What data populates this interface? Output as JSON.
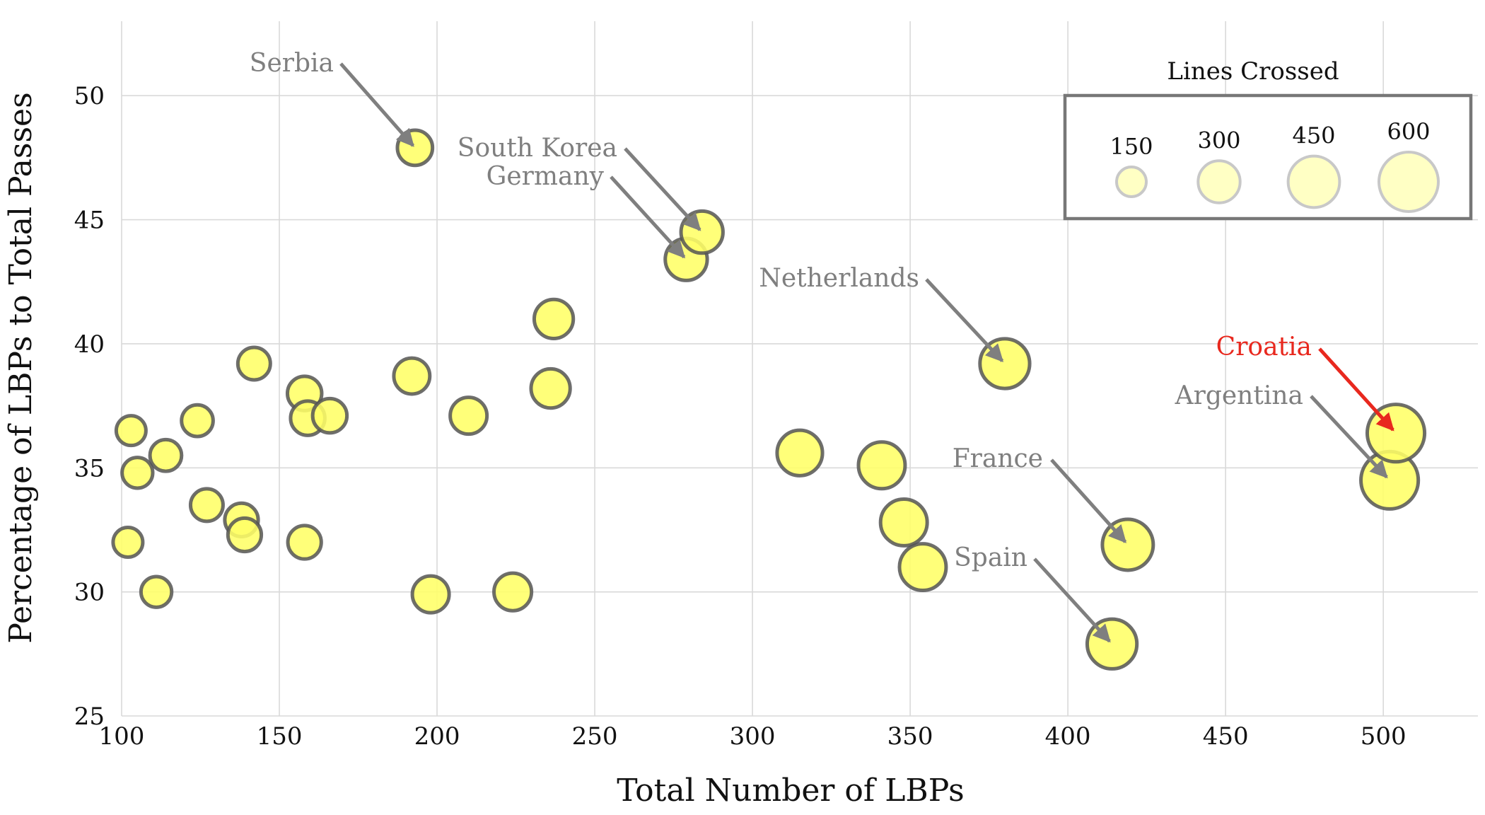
{
  "chart_data": {
    "type": "scatter",
    "xlabel": "Total Number of LBPs",
    "ylabel": "Percentage of LBPs to Total Passes",
    "xlim": [
      100,
      530
    ],
    "ylim": [
      25,
      53
    ],
    "xticks": [
      100,
      150,
      200,
      250,
      300,
      350,
      400,
      450,
      500
    ],
    "yticks": [
      25,
      30,
      35,
      40,
      45,
      50
    ],
    "grid": true,
    "colors": {
      "marker_fill": "#ffff66",
      "marker_edge": "#555555",
      "annotation": "#7f7f7f",
      "highlight": "#e8281e"
    },
    "size_encoding": "Lines Crossed",
    "points": [
      {
        "x": 103,
        "y": 36.5,
        "size": 150
      },
      {
        "x": 105,
        "y": 34.8,
        "size": 160
      },
      {
        "x": 102,
        "y": 32.0,
        "size": 150
      },
      {
        "x": 111,
        "y": 30.0,
        "size": 160
      },
      {
        "x": 114,
        "y": 35.5,
        "size": 170
      },
      {
        "x": 124,
        "y": 36.9,
        "size": 170
      },
      {
        "x": 127,
        "y": 33.5,
        "size": 180
      },
      {
        "x": 138,
        "y": 32.9,
        "size": 190
      },
      {
        "x": 139,
        "y": 32.3,
        "size": 190
      },
      {
        "x": 142,
        "y": 39.2,
        "size": 180
      },
      {
        "x": 158,
        "y": 38.0,
        "size": 200
      },
      {
        "x": 159,
        "y": 37.0,
        "size": 200
      },
      {
        "x": 158,
        "y": 32.0,
        "size": 190
      },
      {
        "x": 166,
        "y": 37.1,
        "size": 200
      },
      {
        "x": 192,
        "y": 38.7,
        "size": 220
      },
      {
        "x": 193,
        "y": 47.9,
        "size": 210,
        "label": "Serbia"
      },
      {
        "x": 198,
        "y": 29.9,
        "size": 230
      },
      {
        "x": 210,
        "y": 37.1,
        "size": 230
      },
      {
        "x": 224,
        "y": 30.0,
        "size": 240
      },
      {
        "x": 236,
        "y": 38.2,
        "size": 260
      },
      {
        "x": 237,
        "y": 41.0,
        "size": 260
      },
      {
        "x": 279,
        "y": 43.4,
        "size": 300,
        "label": "Germany"
      },
      {
        "x": 284,
        "y": 44.5,
        "size": 300,
        "label": "South Korea"
      },
      {
        "x": 315,
        "y": 35.6,
        "size": 350
      },
      {
        "x": 341,
        "y": 35.1,
        "size": 370
      },
      {
        "x": 348,
        "y": 32.8,
        "size": 370
      },
      {
        "x": 354,
        "y": 31.0,
        "size": 370
      },
      {
        "x": 380,
        "y": 39.2,
        "size": 420,
        "label": "Netherlands"
      },
      {
        "x": 414,
        "y": 27.9,
        "size": 420,
        "label": "Spain"
      },
      {
        "x": 419,
        "y": 31.9,
        "size": 440,
        "label": "France"
      },
      {
        "x": 502,
        "y": 34.5,
        "size": 560,
        "label": "Argentina"
      },
      {
        "x": 504,
        "y": 36.4,
        "size": 560,
        "label": "Croatia",
        "highlight": true
      }
    ],
    "annotations": [
      {
        "text": "Serbia",
        "target": "Serbia"
      },
      {
        "text": "South Korea",
        "target": "South Korea"
      },
      {
        "text": "Germany",
        "target": "Germany"
      },
      {
        "text": "Netherlands",
        "target": "Netherlands"
      },
      {
        "text": "Croatia",
        "target": "Croatia",
        "highlight": true
      },
      {
        "text": "Argentina",
        "target": "Argentina"
      },
      {
        "text": "France",
        "target": "France"
      },
      {
        "text": "Spain",
        "target": "Spain"
      }
    ],
    "legend": {
      "title": "Lines Crossed",
      "placement": "top-right",
      "sizes": [
        {
          "label": "150",
          "value": 150
        },
        {
          "label": "300",
          "value": 300
        },
        {
          "label": "450",
          "value": 450
        },
        {
          "label": "600",
          "value": 600
        }
      ]
    }
  }
}
